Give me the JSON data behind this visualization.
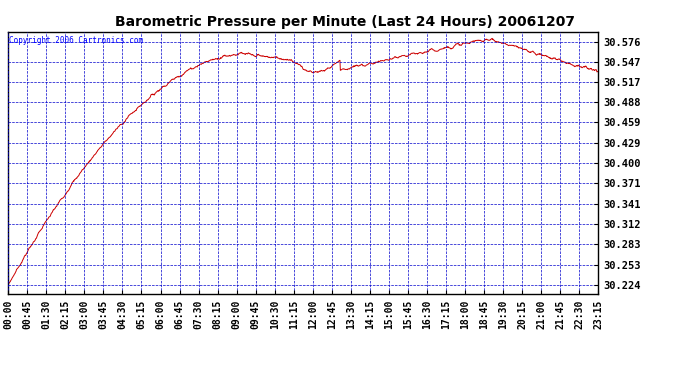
{
  "title": "Barometric Pressure per Minute (Last 24 Hours) 20061207",
  "copyright": "Copyright 2006 Cartronics.com",
  "background_color": "#ffffff",
  "plot_background": "#ffffff",
  "line_color": "#cc0000",
  "grid_color": "#0000cc",
  "yticks": [
    30.224,
    30.253,
    30.283,
    30.312,
    30.341,
    30.371,
    30.4,
    30.429,
    30.459,
    30.488,
    30.517,
    30.547,
    30.576
  ],
  "ylim": [
    30.21,
    30.59
  ],
  "xtick_labels": [
    "00:00",
    "00:45",
    "01:30",
    "02:15",
    "03:00",
    "03:45",
    "04:30",
    "05:15",
    "06:00",
    "06:45",
    "07:30",
    "08:15",
    "09:00",
    "09:45",
    "10:30",
    "11:15",
    "12:00",
    "12:45",
    "13:30",
    "14:15",
    "15:00",
    "15:45",
    "16:30",
    "17:15",
    "18:00",
    "18:45",
    "19:30",
    "20:15",
    "21:00",
    "21:45",
    "22:30",
    "23:15"
  ],
  "num_points": 1440
}
